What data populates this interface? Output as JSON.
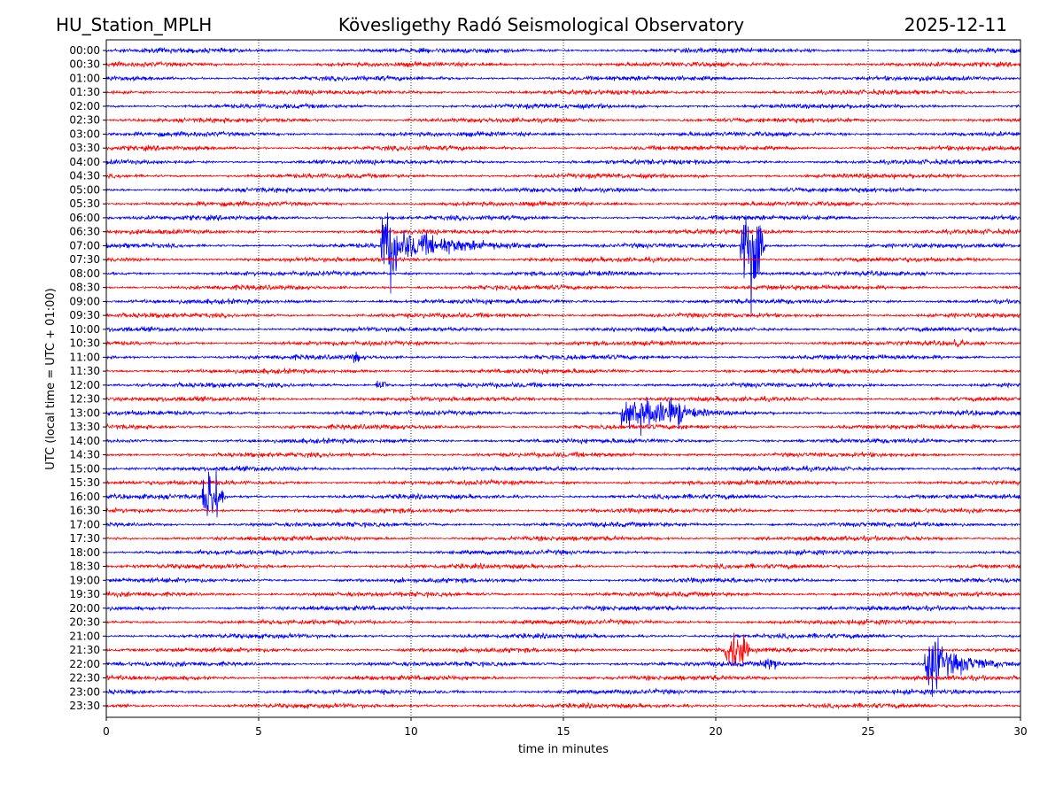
{
  "header": {
    "station": "HU_Station_MPLH",
    "title": "Kövesligethy Radó Seismological Observatory",
    "date": "2025-12-11"
  },
  "chart_data": {
    "type": "line",
    "subtype": "helicorder",
    "xlabel": "time in minutes",
    "ylabel": "UTC (local time = UTC + 01:00)",
    "xlim": [
      0,
      30
    ],
    "xticks": [
      "0",
      "5",
      "10",
      "15",
      "20",
      "25",
      "30"
    ],
    "xtick_values": [
      0,
      5,
      10,
      15,
      20,
      25,
      30
    ],
    "grid": "vertical dotted at x ticks",
    "row_labels": [
      "00:00",
      "00:30",
      "01:00",
      "01:30",
      "02:00",
      "02:30",
      "03:00",
      "03:30",
      "04:00",
      "04:30",
      "05:00",
      "05:30",
      "06:00",
      "06:30",
      "07:00",
      "07:30",
      "08:00",
      "08:30",
      "09:00",
      "09:30",
      "10:00",
      "10:30",
      "11:00",
      "11:30",
      "12:00",
      "12:30",
      "13:00",
      "13:30",
      "14:00",
      "14:30",
      "15:00",
      "15:30",
      "16:00",
      "16:30",
      "17:00",
      "17:30",
      "18:00",
      "18:30",
      "19:00",
      "19:30",
      "20:00",
      "20:30",
      "21:00",
      "21:30",
      "22:00",
      "22:30",
      "23:00",
      "23:30"
    ],
    "series_colors": [
      "#0000ff",
      "#ff0000"
    ],
    "background_noise_amplitude": 1,
    "events": [
      {
        "row": "07:00",
        "onset_min": 9.0,
        "peak_amplitude": 20,
        "burst_min": 0.6,
        "coda_end_min": 14.5
      },
      {
        "row": "07:00",
        "onset_min": 20.8,
        "peak_amplitude": 24,
        "burst_min": 0.7,
        "coda_end_min": 21.6
      },
      {
        "row": "10:30",
        "onset_min": 27.8,
        "peak_amplitude": 3,
        "burst_min": 0.3,
        "coda_end_min": 28.3
      },
      {
        "row": "11:00",
        "onset_min": 8.0,
        "peak_amplitude": 3,
        "burst_min": 0.3,
        "coda_end_min": 8.6
      },
      {
        "row": "12:00",
        "onset_min": 8.85,
        "peak_amplitude": 3,
        "burst_min": 0.3,
        "coda_end_min": 9.5
      },
      {
        "row": "13:00",
        "onset_min": 16.9,
        "peak_amplitude": 8,
        "burst_min": 2.0,
        "coda_end_min": 20.2
      },
      {
        "row": "16:00",
        "onset_min": 3.15,
        "peak_amplitude": 16,
        "burst_min": 0.5,
        "coda_end_min": 3.9
      },
      {
        "row": "21:30",
        "onset_min": 20.3,
        "peak_amplitude": 10,
        "burst_min": 0.7,
        "coda_end_min": 21.1
      },
      {
        "row": "22:00",
        "onset_min": 21.45,
        "peak_amplitude": 4,
        "burst_min": 0.5,
        "coda_end_min": 24.0
      },
      {
        "row": "22:00",
        "onset_min": 26.85,
        "peak_amplitude": 20,
        "burst_min": 0.5,
        "coda_end_min": 30
      }
    ]
  }
}
